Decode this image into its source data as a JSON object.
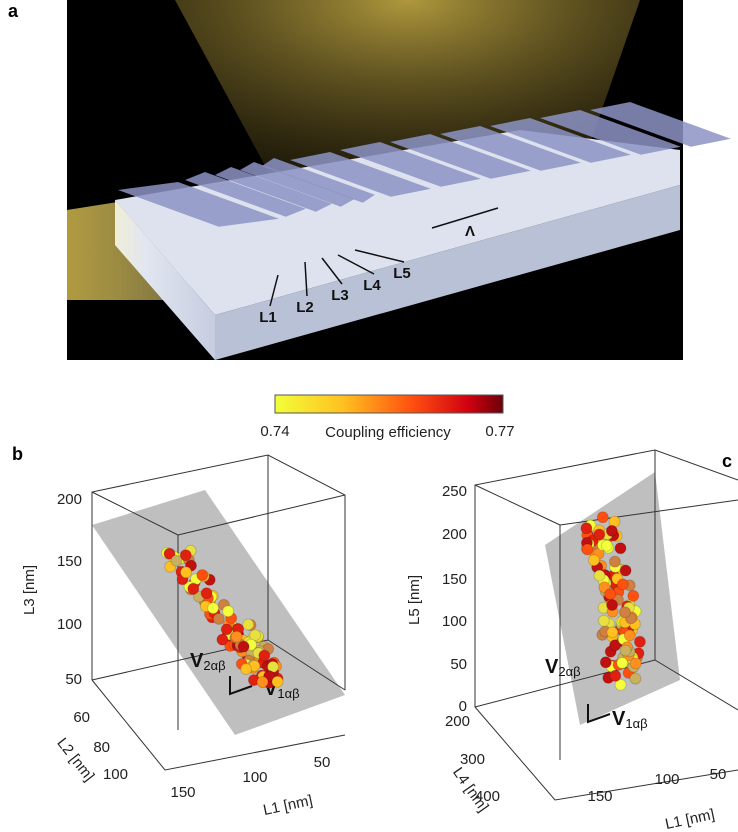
{
  "panel_a": {
    "label": "a",
    "annotations": [
      "L1",
      "L2",
      "L3",
      "L4",
      "L5",
      "Λ"
    ]
  },
  "colorbar": {
    "min": 0.74,
    "max": 0.77,
    "label": "Coupling efficiency"
  },
  "panel_b": {
    "label": "b",
    "z_label": "L3 [nm]",
    "z_ticks": [
      200,
      150,
      100,
      50
    ],
    "y_label": "L2 [nm]",
    "y_ticks": [
      60,
      80,
      100
    ],
    "x_label": "L1 [nm]",
    "x_ticks": [
      150,
      100,
      50
    ],
    "vectors": [
      {
        "main": "V",
        "sub": "2αβ"
      },
      {
        "main": "V",
        "sub": "1αβ"
      }
    ]
  },
  "panel_c": {
    "label": "c",
    "z_label": "L5 [nm]",
    "z_ticks": [
      250,
      200,
      150,
      100,
      50,
      0
    ],
    "y_label": "L4 [nm]",
    "y_ticks": [
      200,
      300,
      400
    ],
    "x_label": "L1 [nm]",
    "x_ticks": [
      150,
      100,
      50
    ],
    "vectors": [
      {
        "main": "V",
        "sub": "2αβ"
      },
      {
        "main": "V",
        "sub": "1αβ"
      }
    ]
  }
}
